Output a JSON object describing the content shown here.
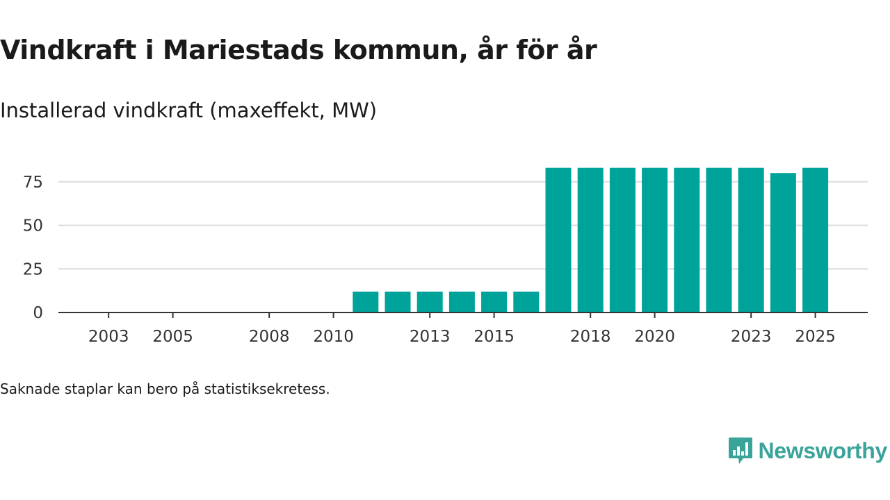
{
  "title": "Vindkraft i Mariestads kommun, år för år",
  "subtitle": "Installerad vindkraft (maxeffekt, MW)",
  "note": "Saknade staplar kan bero på statistiksekretess.",
  "brand": {
    "name": "Newsworthy",
    "icon": "newsworthy-logo-icon",
    "color": "#3aa39a"
  },
  "colors": {
    "bar": "#00a39a",
    "grid": "#dcdcdc",
    "axis": "#333333"
  },
  "chart_data": {
    "type": "bar",
    "title": "Vindkraft i Mariestads kommun, år för år",
    "subtitle": "Installerad vindkraft (maxeffekt, MW)",
    "xlabel": "",
    "ylabel": "",
    "categories": [
      2002,
      2003,
      2004,
      2005,
      2006,
      2007,
      2008,
      2009,
      2010,
      2011,
      2012,
      2013,
      2014,
      2015,
      2016,
      2017,
      2018,
      2019,
      2020,
      2021,
      2022,
      2023,
      2024,
      2025
    ],
    "values": [
      null,
      null,
      null,
      null,
      null,
      null,
      null,
      null,
      null,
      12,
      12,
      12,
      12,
      12,
      12,
      83,
      83,
      83,
      83,
      83,
      83,
      83,
      80,
      83
    ],
    "x_tick_labels": [
      "2003",
      "2005",
      "2008",
      "2010",
      "2013",
      "2015",
      "2018",
      "2020",
      "2023",
      "2025"
    ],
    "y_ticks": [
      0,
      25,
      50,
      75
    ],
    "ylim": [
      0,
      83
    ],
    "grid": true,
    "legend": "none"
  }
}
